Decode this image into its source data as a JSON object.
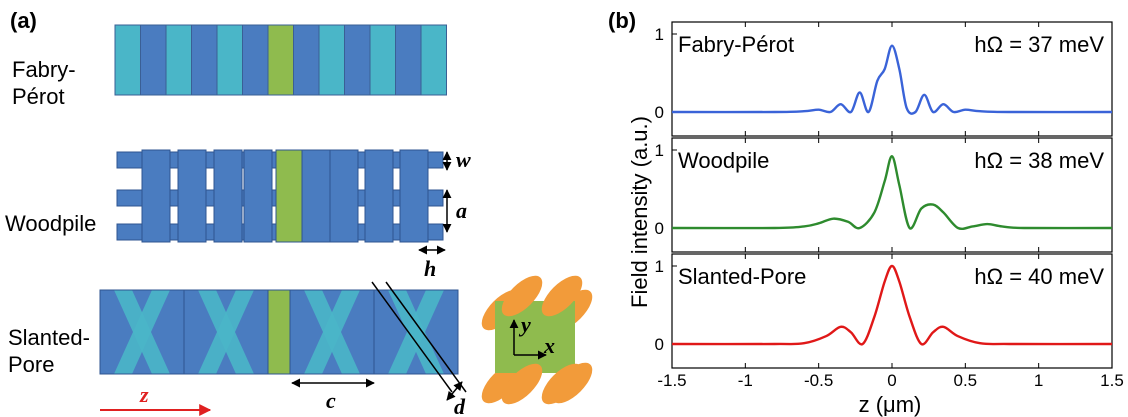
{
  "panel_a": {
    "label": "(a)",
    "structures": [
      {
        "name_line1": "Fabry-",
        "name_line2": "Pérot"
      },
      {
        "name": "Woodpile"
      },
      {
        "name_line1": "Slanted-",
        "name_line2": "Pore"
      }
    ],
    "dims": {
      "w": "w",
      "a": "a",
      "h": "h",
      "c": "c",
      "d": "d",
      "z": "z",
      "x": "x",
      "y": "y"
    },
    "colors": {
      "dark_blue": "#4a7cc0",
      "light_blue": "#4ab6c8",
      "green": "#8fbb4e",
      "orange": "#f29b3a",
      "arrow_red": "#e02020"
    }
  },
  "panel_b": {
    "label": "(b)",
    "ylabel": "Field intensity (a.u.)",
    "xlabel": "z (μm)",
    "x_ticks": [
      "-1.5",
      "-1",
      "-0.5",
      "0",
      "0.5",
      "1",
      "1.5"
    ],
    "y_ticks": [
      "0",
      "1"
    ]
  },
  "chart_data": {
    "type": "line",
    "x_range": [
      -1.5,
      1.5
    ],
    "y_range": [
      0,
      1
    ],
    "xlabel": "z (μm)",
    "ylabel": "Field intensity (a.u.)",
    "x_ticks": [
      -1.5,
      -1,
      -0.5,
      0,
      0.5,
      1,
      1.5
    ],
    "subplots": [
      {
        "name": "Fabry-Pérot",
        "annotation": "hΩ = 37 meV",
        "color": "#3a63d8",
        "x": [
          -1.5,
          -0.8,
          -0.6,
          -0.5,
          -0.42,
          -0.35,
          -0.28,
          -0.22,
          -0.16,
          -0.1,
          -0.05,
          0,
          0.05,
          0.1,
          0.16,
          0.22,
          0.28,
          0.35,
          0.42,
          0.5,
          0.6,
          0.8,
          1.5
        ],
        "y": [
          0,
          0,
          0.01,
          0.03,
          0.0,
          0.1,
          0.0,
          0.25,
          0.0,
          0.4,
          0.55,
          0.85,
          0.55,
          0.05,
          0.0,
          0.22,
          0.0,
          0.1,
          0.0,
          0.03,
          0.01,
          0,
          0
        ]
      },
      {
        "name": "Woodpile",
        "annotation": "hΩ = 38 meV",
        "color": "#2e8b2e",
        "x": [
          -1.5,
          -0.8,
          -0.6,
          -0.5,
          -0.4,
          -0.3,
          -0.22,
          -0.12,
          -0.05,
          0,
          0.05,
          0.12,
          0.2,
          0.28,
          0.35,
          0.45,
          0.55,
          0.65,
          0.75,
          0.9,
          1.5
        ],
        "y": [
          0,
          0,
          0.02,
          0.06,
          0.12,
          0.08,
          0.0,
          0.2,
          0.6,
          0.92,
          0.55,
          0.0,
          0.25,
          0.3,
          0.2,
          0.0,
          0.02,
          0.05,
          0.02,
          0,
          0
        ]
      },
      {
        "name": "Slanted-Pore",
        "annotation": "hΩ = 40 meV",
        "color": "#e01818",
        "x": [
          -1.5,
          -0.8,
          -0.6,
          -0.45,
          -0.35,
          -0.28,
          -0.2,
          -0.12,
          -0.05,
          0,
          0.05,
          0.12,
          0.2,
          0.28,
          0.35,
          0.45,
          0.6,
          0.8,
          1.5
        ],
        "y": [
          0,
          0,
          0.01,
          0.1,
          0.22,
          0.15,
          0.0,
          0.35,
          0.8,
          1.0,
          0.8,
          0.35,
          0.0,
          0.15,
          0.22,
          0.1,
          0.01,
          0,
          0
        ]
      }
    ]
  }
}
